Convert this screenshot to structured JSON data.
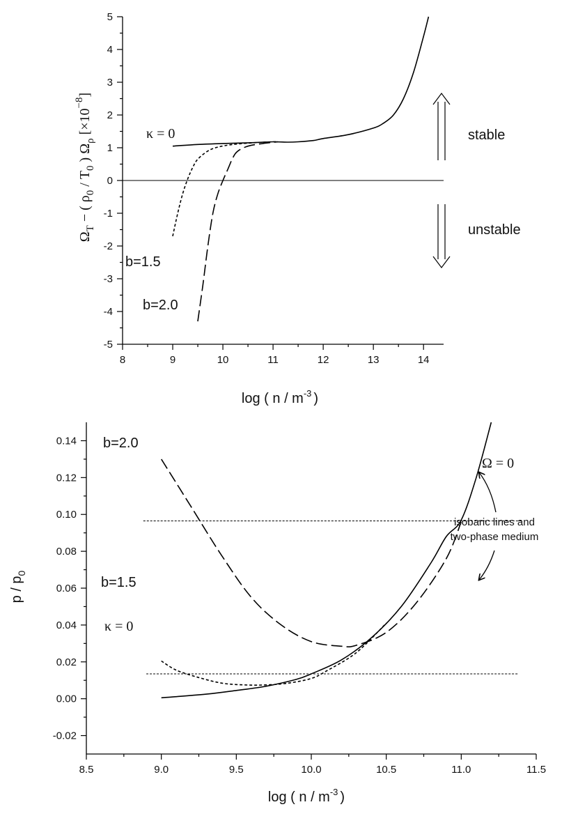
{
  "chart_data": [
    {
      "type": "line",
      "xlabel": "log ( n / m",
      "xlabel_sup": "-3",
      "xlabel_end": ")",
      "ylabel_main": "Ω",
      "ylabel_sub1": "T",
      "ylabel_mid": " − ( ρ",
      "ylabel_sub2": "0",
      "ylabel_mid2": " / T",
      "ylabel_sub3": "0",
      "ylabel_mid3": " ) Ω",
      "ylabel_sub4": "ρ",
      "ylabel_unit": " [×10",
      "ylabel_unit_sup": "−8",
      "ylabel_unit_end": "]",
      "xlim": [
        8,
        14.4
      ],
      "ylim": [
        -5,
        5
      ],
      "xticks": [
        "8",
        "9",
        "10",
        "11",
        "12",
        "13",
        "14"
      ],
      "yticks": [
        "-5",
        "-4",
        "-3",
        "-2",
        "-1",
        "0",
        "1",
        "2",
        "3",
        "4",
        "5"
      ],
      "series": [
        {
          "name": "κ = 0",
          "style": "solid",
          "x": [
            9.0,
            9.5,
            10.0,
            10.5,
            11.0,
            11.3,
            11.5,
            11.8,
            12.0,
            12.5,
            13.0,
            13.2,
            13.4,
            13.6,
            13.8,
            14.0,
            14.1
          ],
          "y": [
            1.05,
            1.1,
            1.13,
            1.15,
            1.18,
            1.17,
            1.18,
            1.22,
            1.28,
            1.4,
            1.6,
            1.75,
            2.0,
            2.5,
            3.3,
            4.4,
            5.0
          ]
        },
        {
          "name": "b=1.5",
          "style": "short-dash",
          "x": [
            9.0,
            9.1,
            9.2,
            9.3,
            9.4,
            9.5,
            9.7,
            9.9,
            10.2,
            10.6,
            11.0,
            11.1
          ],
          "y": [
            -1.7,
            -1.0,
            -0.4,
            0.05,
            0.4,
            0.65,
            0.9,
            1.02,
            1.1,
            1.15,
            1.18,
            1.18
          ]
        },
        {
          "name": "b=2.0",
          "style": "long-dash",
          "x": [
            9.5,
            9.6,
            9.7,
            9.8,
            9.9,
            10.0,
            10.1,
            10.2,
            10.3,
            10.5,
            10.8,
            11.1
          ],
          "y": [
            -4.3,
            -3.2,
            -2.0,
            -1.0,
            -0.4,
            0.0,
            0.35,
            0.7,
            0.9,
            1.05,
            1.13,
            1.18
          ]
        },
        {
          "name": "zero",
          "style": "solid-thin",
          "x": [
            8.0,
            14.4
          ],
          "y": [
            0,
            0
          ]
        }
      ],
      "labels": {
        "kappa": "κ = 0",
        "b15": "b=1.5",
        "b20": "b=2.0",
        "stable": "stable",
        "unstable": "unstable"
      }
    },
    {
      "type": "line",
      "xlabel": "log ( n / m",
      "xlabel_sup": "-3",
      "xlabel_end": ")",
      "ylabel": "p / p",
      "ylabel_sub": "0",
      "xlim": [
        8.5,
        11.5
      ],
      "ylim": [
        -0.03,
        0.15
      ],
      "xticks": [
        "8.5",
        "9.0",
        "9.5",
        "10.0",
        "10.5",
        "11.0",
        "11.5"
      ],
      "yticks": [
        "-0.02",
        "0.00",
        "0.02",
        "0.04",
        "0.06",
        "0.08",
        "0.10",
        "0.12",
        "0.14"
      ],
      "series": [
        {
          "name": "κ = 0",
          "style": "solid",
          "x": [
            9.0,
            9.3,
            9.5,
            9.7,
            9.9,
            10.0,
            10.2,
            10.4,
            10.6,
            10.8,
            10.9,
            11.0,
            11.1,
            11.2
          ],
          "y": [
            0.0005,
            0.0025,
            0.0045,
            0.0068,
            0.0105,
            0.0135,
            0.021,
            0.033,
            0.05,
            0.074,
            0.088,
            0.097,
            0.12,
            0.15
          ]
        },
        {
          "name": "b=1.5",
          "style": "short-dash",
          "x": [
            9.0,
            9.1,
            9.25,
            9.4,
            9.55,
            9.7,
            9.85,
            10.0,
            10.1,
            10.3,
            10.5
          ],
          "y": [
            0.0205,
            0.0155,
            0.0115,
            0.0085,
            0.0075,
            0.0075,
            0.0085,
            0.011,
            0.015,
            0.025,
            0.041
          ]
        },
        {
          "name": "b=2.0",
          "style": "long-dash",
          "x": [
            9.0,
            9.2,
            9.4,
            9.6,
            9.8,
            10.0,
            10.2,
            10.3,
            10.5,
            10.7,
            10.9,
            11.0
          ],
          "y": [
            0.13,
            0.104,
            0.078,
            0.055,
            0.04,
            0.031,
            0.0285,
            0.029,
            0.036,
            0.052,
            0.076,
            0.096
          ]
        },
        {
          "name": "isobar-upper",
          "style": "dotted-thin",
          "x": [
            8.88,
            11.4
          ],
          "y": [
            0.0965,
            0.0965
          ]
        },
        {
          "name": "isobar-lower",
          "style": "dotted-thin",
          "x": [
            8.9,
            11.38
          ],
          "y": [
            0.0135,
            0.0135
          ]
        }
      ],
      "labels": {
        "b20": "b=2.0",
        "b15": "b=1.5",
        "kappa": "κ = 0",
        "omega": "Ω = 0",
        "note_line1": "isobaric lines and",
        "note_line2": "two-phase medium"
      }
    }
  ]
}
